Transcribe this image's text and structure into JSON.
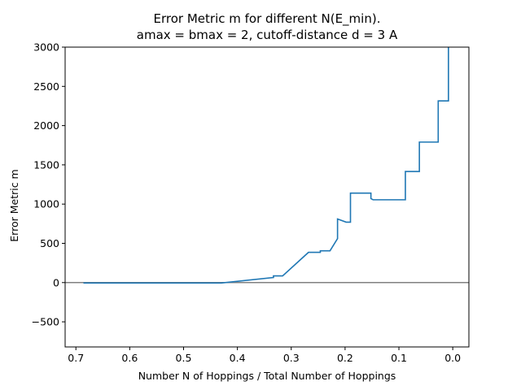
{
  "chart_data": {
    "type": "line",
    "title_line1": "Error Metric m for different N(E_min).",
    "title_line2": "amax = bmax = 2, cutoff-distance d = 3 A",
    "xlabel": "Number N of Hoppings / Total Number of Hoppings",
    "ylabel": "Error Metric m",
    "xlim": [
      0.72,
      -0.03
    ],
    "ylim": [
      -820,
      3000
    ],
    "x_inverted": true,
    "xticks": [
      0.7,
      0.6,
      0.5,
      0.4,
      0.3,
      0.2,
      0.1,
      0.0
    ],
    "xtick_labels": [
      "0.7",
      "0.6",
      "0.5",
      "0.4",
      "0.3",
      "0.2",
      "0.1",
      "0.0"
    ],
    "yticks": [
      -500,
      0,
      500,
      1000,
      1500,
      2000,
      2500,
      3000
    ],
    "ytick_labels": [
      "−500",
      "0",
      "500",
      "1000",
      "1500",
      "2000",
      "2500",
      "3000"
    ],
    "reference_line": {
      "y": 0,
      "color": "#808080"
    },
    "grid": false,
    "series": [
      {
        "color": "#1f77b4",
        "x": [
          0.686,
          0.43,
          0.333,
          0.333,
          0.316,
          0.268,
          0.246,
          0.246,
          0.228,
          0.214,
          0.214,
          0.198,
          0.19,
          0.19,
          0.152,
          0.152,
          0.148,
          0.088,
          0.088,
          0.062,
          0.062,
          0.027,
          0.027,
          0.008,
          0.008,
          0.008
        ],
        "y": [
          -5,
          -5,
          65,
          85,
          85,
          385,
          385,
          405,
          405,
          560,
          810,
          770,
          770,
          1140,
          1140,
          1070,
          1055,
          1055,
          1415,
          1415,
          1790,
          1790,
          2315,
          2315,
          2500,
          3000
        ]
      }
    ]
  }
}
